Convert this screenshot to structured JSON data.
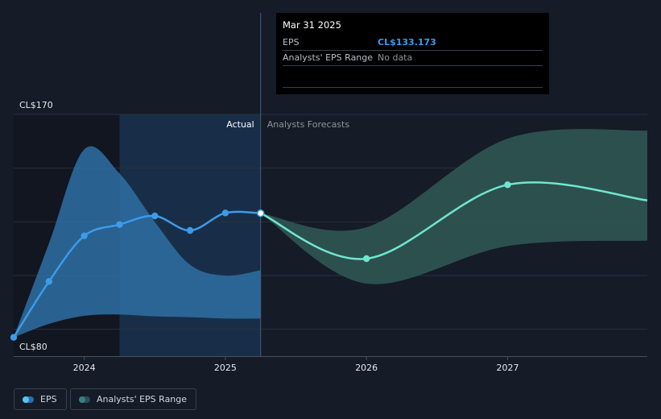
{
  "tooltip": {
    "date": "Mar 31 2025",
    "rows": [
      {
        "label": "EPS",
        "value": "CL$133.173"
      },
      {
        "label": "Analysts' EPS Range",
        "value": "No data"
      }
    ]
  },
  "legend": {
    "eps_label": "EPS",
    "range_label": "Analysts' EPS Range"
  },
  "colors": {
    "eps_line": "#3d9be9",
    "forecast_line": "#6fe6cf",
    "actual_range": "#2e6fa3",
    "forecast_range": "#2f5653"
  },
  "chart_data": {
    "type": "line",
    "y_top_label": "CL$170",
    "y_bottom_label": "CL$80",
    "ylim": [
      80,
      170
    ],
    "xlim": [
      2023.5,
      2027.99
    ],
    "x_ticks": [
      {
        "x": 2024.0,
        "label": "2024"
      },
      {
        "x": 2025.0,
        "label": "2025"
      },
      {
        "x": 2026.0,
        "label": "2026"
      },
      {
        "x": 2027.0,
        "label": "2027"
      }
    ],
    "gridlines": [
      170,
      150,
      130,
      110,
      90
    ],
    "divider_x": 2025.25,
    "actual_label": "Actual",
    "forecast_label": "Analysts Forecasts",
    "highlight_from_x": 2024.25,
    "series": [
      {
        "name": "EPS",
        "points": [
          [
            2023.5,
            87.0
          ],
          [
            2023.75,
            107.8
          ],
          [
            2024.0,
            124.8
          ],
          [
            2024.25,
            129.0
          ],
          [
            2024.5,
            132.2
          ],
          [
            2024.75,
            126.8
          ],
          [
            2025.0,
            133.3
          ],
          [
            2025.25,
            133.2
          ]
        ]
      },
      {
        "name": "EPS Forecast",
        "points": [
          [
            2025.25,
            133.2
          ],
          [
            2026.0,
            116.3
          ],
          [
            2027.0,
            143.8
          ],
          [
            2027.99,
            138.0
          ]
        ]
      }
    ],
    "actual_range": {
      "upper": [
        [
          2023.5,
          87.0
        ],
        [
          2023.75,
          122.0
        ],
        [
          2024.0,
          157.0
        ],
        [
          2024.25,
          148.0
        ],
        [
          2024.5,
          130.0
        ],
        [
          2024.75,
          114.0
        ],
        [
          2025.0,
          110.0
        ],
        [
          2025.25,
          112.0
        ]
      ],
      "lower": [
        [
          2023.5,
          87.0
        ],
        [
          2023.75,
          92.0
        ],
        [
          2024.0,
          95.0
        ],
        [
          2024.25,
          95.5
        ],
        [
          2024.5,
          94.8
        ],
        [
          2024.75,
          94.5
        ],
        [
          2025.0,
          94.0
        ],
        [
          2025.25,
          94.0
        ]
      ]
    },
    "forecast_range": {
      "upper": [
        [
          2025.25,
          133.2
        ],
        [
          2026.0,
          128.0
        ],
        [
          2027.0,
          161.0
        ],
        [
          2027.99,
          164.0
        ]
      ],
      "lower": [
        [
          2025.25,
          133.2
        ],
        [
          2026.0,
          107.0
        ],
        [
          2027.0,
          121.0
        ],
        [
          2027.99,
          123.0
        ]
      ]
    }
  }
}
